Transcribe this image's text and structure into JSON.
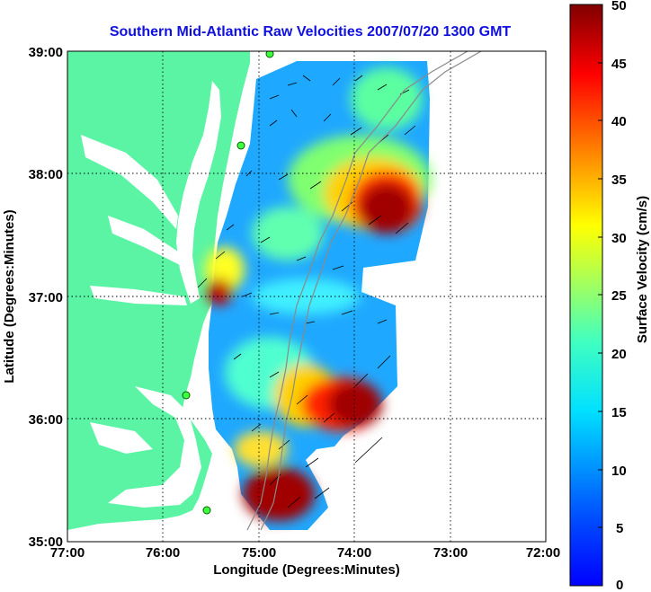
{
  "map": {
    "title": "Southern Mid-Atlantic Raw Velocities 2007/07/20 1300 GMT",
    "xlabel": "Longitude (Degrees:Minutes)",
    "ylabel": "Latitude (Degrees:Minutes)",
    "x_ticks": [
      "77:00",
      "76:00",
      "75:00",
      "74:00",
      "73:00",
      "72:00"
    ],
    "y_ticks": [
      "39:00",
      "38:00",
      "37:00",
      "36:00",
      "35:00"
    ],
    "lon_range": [
      -77,
      -72
    ],
    "lat_range": [
      35,
      39
    ],
    "grid": true,
    "colors": {
      "land": "#5af4a4",
      "title": "#1010e0",
      "grid": "#000000"
    }
  },
  "colorbar": {
    "label": "Surface Velocity (cm/s)",
    "ticks": [
      "50",
      "45",
      "40",
      "35",
      "30",
      "25",
      "20",
      "15",
      "10",
      "5",
      "0"
    ],
    "range": [
      0,
      50
    ],
    "colormap": "jet"
  },
  "chart_data": {
    "type": "heatmap",
    "variable": "surface velocity",
    "units": "cm/s",
    "hotspots": [
      {
        "lon": -73.8,
        "lat": 37.6,
        "speed": 48
      },
      {
        "lon": -75.6,
        "lat": 37.0,
        "speed": 45
      },
      {
        "lon": -74.0,
        "lat": 36.0,
        "speed": 46
      },
      {
        "lon": -74.8,
        "lat": 35.4,
        "speed": 50
      }
    ]
  }
}
